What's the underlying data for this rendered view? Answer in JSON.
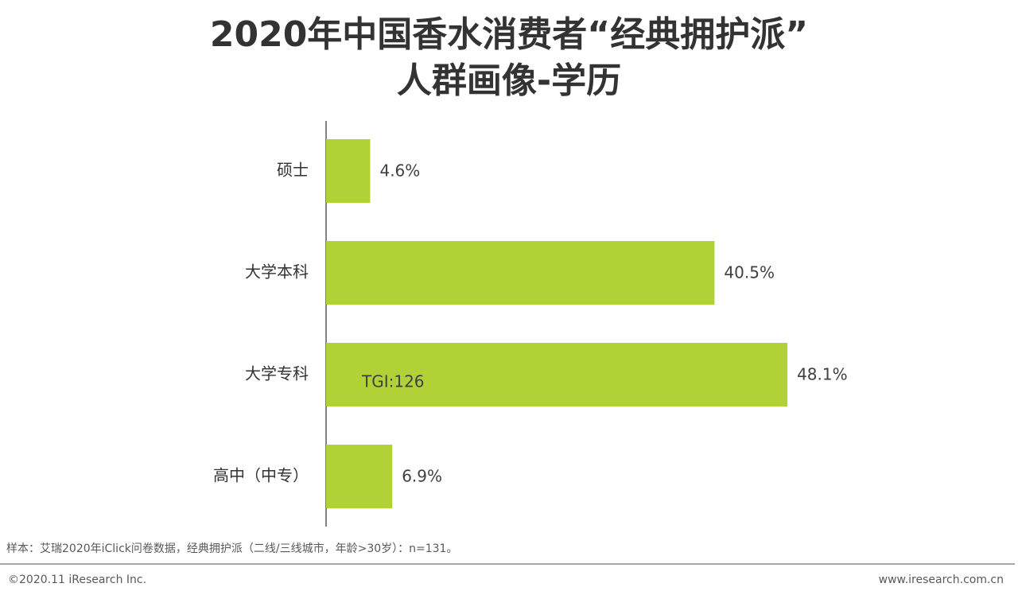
{
  "chart_data": {
    "type": "bar",
    "orientation": "horizontal",
    "title": [
      "2020年中国香水消费者“经典拥护派”",
      "人群画像-学历"
    ],
    "categories": [
      "硕士",
      "大学本科",
      "大学专科",
      "高中（中专）"
    ],
    "values": [
      4.6,
      40.5,
      48.1,
      6.9
    ],
    "value_labels": [
      "4.6%",
      "40.5%",
      "48.1%",
      "6.9%"
    ],
    "color": "#b0d236",
    "annotation": "TGI:126",
    "source": "样本：艾瑞2020年iClick问卷数据，经典拥护派（二线/三线城市，年龄>30岁）：n=131。",
    "copyright": "©2020.11 iResearch Inc.",
    "website": "www.iresearch.com.cn"
  }
}
